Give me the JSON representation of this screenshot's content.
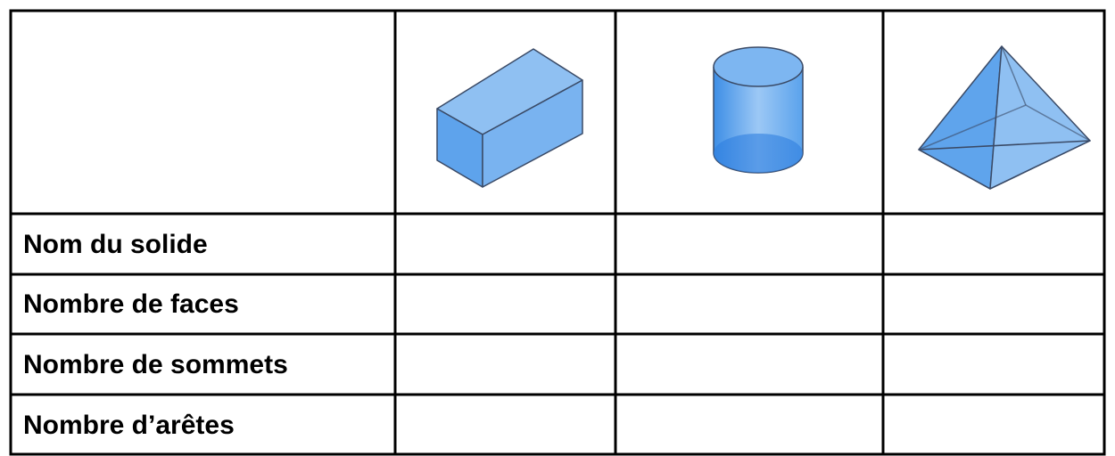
{
  "table": {
    "rows": [
      "Nom du solide",
      "Nombre de faces",
      "Nombre de sommets",
      "Nombre d’arêtes"
    ]
  }
}
